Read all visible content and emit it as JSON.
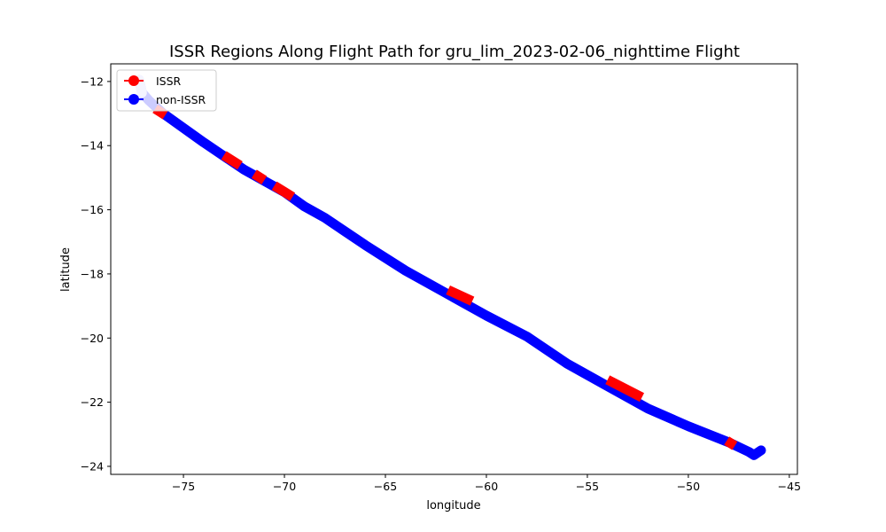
{
  "chart_data": {
    "type": "line",
    "title": "ISSR Regions Along Flight Path for gru_lim_2023-02-06_nighttime Flight",
    "xlabel": "longitude",
    "ylabel": "latitude",
    "xlim": [
      -78.6,
      -44.6
    ],
    "ylim": [
      -24.25,
      -11.45
    ],
    "xticks": [
      -75,
      -70,
      -65,
      -60,
      -55,
      -50,
      -45
    ],
    "yticks": [
      -12,
      -14,
      -16,
      -18,
      -20,
      -22,
      -24
    ],
    "xtick_labels": [
      "−75",
      "−70",
      "−65",
      "−60",
      "−55",
      "−50",
      "−45"
    ],
    "ytick_labels": [
      "−12",
      "−14",
      "−16",
      "−18",
      "−20",
      "−22",
      "−24"
    ],
    "grid": false,
    "legend_position": "top-left",
    "series": [
      {
        "name": "non-ISSR",
        "color": "#0000ff",
        "path": [
          [
            -77.2,
            -11.95
          ],
          [
            -77.05,
            -12.35
          ],
          [
            -76.7,
            -12.6
          ],
          [
            -76.0,
            -13.0
          ],
          [
            -74.0,
            -13.9
          ],
          [
            -72.0,
            -14.75
          ],
          [
            -70.0,
            -15.45
          ],
          [
            -69.0,
            -15.9
          ],
          [
            -68.0,
            -16.25
          ],
          [
            -66.0,
            -17.1
          ],
          [
            -64.0,
            -17.9
          ],
          [
            -62.0,
            -18.6
          ],
          [
            -60.0,
            -19.3
          ],
          [
            -58.0,
            -19.95
          ],
          [
            -56.0,
            -20.8
          ],
          [
            -54.0,
            -21.5
          ],
          [
            -52.0,
            -22.2
          ],
          [
            -50.0,
            -22.75
          ],
          [
            -48.0,
            -23.25
          ],
          [
            -47.0,
            -23.55
          ],
          [
            -46.75,
            -23.65
          ],
          [
            -46.4,
            -23.5
          ]
        ]
      },
      {
        "name": "ISSR",
        "color": "#ff0000",
        "segments": [
          [
            [
              -76.4,
              -12.85
            ],
            [
              -75.9,
              -13.05
            ]
          ],
          [
            [
              -73.0,
              -14.3
            ],
            [
              -72.2,
              -14.62
            ]
          ],
          [
            [
              -71.5,
              -14.88
            ],
            [
              -71.0,
              -15.08
            ]
          ],
          [
            [
              -70.5,
              -15.25
            ],
            [
              -69.6,
              -15.6
            ]
          ],
          [
            [
              -61.9,
              -18.5
            ],
            [
              -60.7,
              -18.85
            ]
          ],
          [
            [
              -54.0,
              -21.3
            ],
            [
              -52.3,
              -21.85
            ]
          ],
          [
            [
              -48.1,
              -23.2
            ],
            [
              -47.7,
              -23.36
            ]
          ]
        ]
      }
    ]
  }
}
